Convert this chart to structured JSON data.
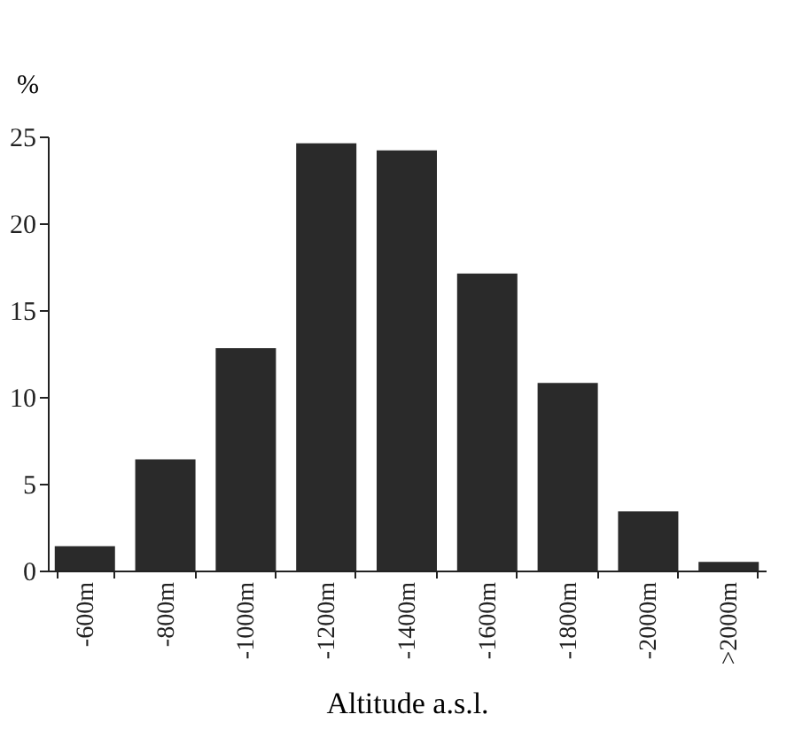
{
  "chart_data": {
    "type": "bar",
    "ylabel": "%",
    "xlabel": "Altitude a.s.l.",
    "categories": [
      "-600m",
      "-800m",
      "-1000m",
      "-1200m",
      "-1400m",
      "-1600m",
      "-1800m",
      "-2000m",
      ">2000m"
    ],
    "values": [
      1.4,
      6.4,
      12.8,
      24.6,
      24.2,
      17.1,
      10.8,
      3.4,
      0.5
    ],
    "color": "#2a2a2a",
    "ylim": [
      0,
      25
    ],
    "yticks": [
      0,
      5,
      10,
      15,
      20,
      25
    ],
    "grid": false
  }
}
